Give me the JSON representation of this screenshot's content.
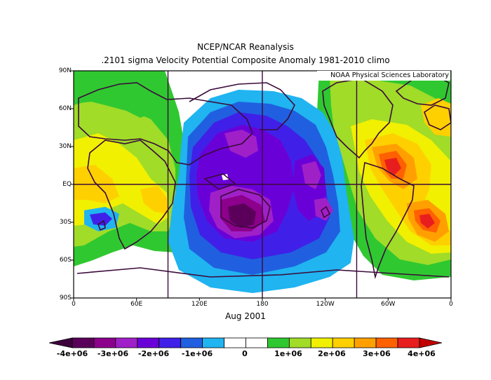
{
  "title": "NCEP/NCAR Reanalysis",
  "subtitle_line": ".2101 sigma Velocity Potential  Composite Anomaly 1981-2010 climo",
  "period": "Aug 2001",
  "credit": "NOAA Physical Sciences Laboratory",
  "lat_labels": [
    "90N",
    "60N",
    "30N",
    "EQ",
    "30S",
    "60S",
    "90S"
  ],
  "lon_labels": [
    "0",
    "60E",
    "120E",
    "180",
    "120W",
    "60W",
    "0"
  ],
  "colorbar": {
    "labels": [
      "-4e+06",
      "-3e+06",
      "-2e+06",
      "-1e+06",
      "0",
      "1e+06",
      "2e+06",
      "3e+06",
      "4e+06"
    ],
    "colors": [
      "#5a005a",
      "#8c008c",
      "#a020c8",
      "#6a00d8",
      "#4020e8",
      "#2060e0",
      "#20b4f0",
      "#ffffff",
      "#ffffff",
      "#30c830",
      "#a0dc28",
      "#f0f000",
      "#ffd000",
      "#ffa000",
      "#ff6000",
      "#e81e1e"
    ],
    "low_arrow_color": "#3c003c",
    "high_arrow_color": "#c00000"
  },
  "colors": {
    "negative_strong": "#5a005a",
    "negative": "#4020e8",
    "negative_weak": "#20b4f0",
    "positive_weak": "#30c830",
    "positive": "#f0f000",
    "positive_strong": "#e81e1e",
    "coastline": "#3a0a3a"
  }
}
